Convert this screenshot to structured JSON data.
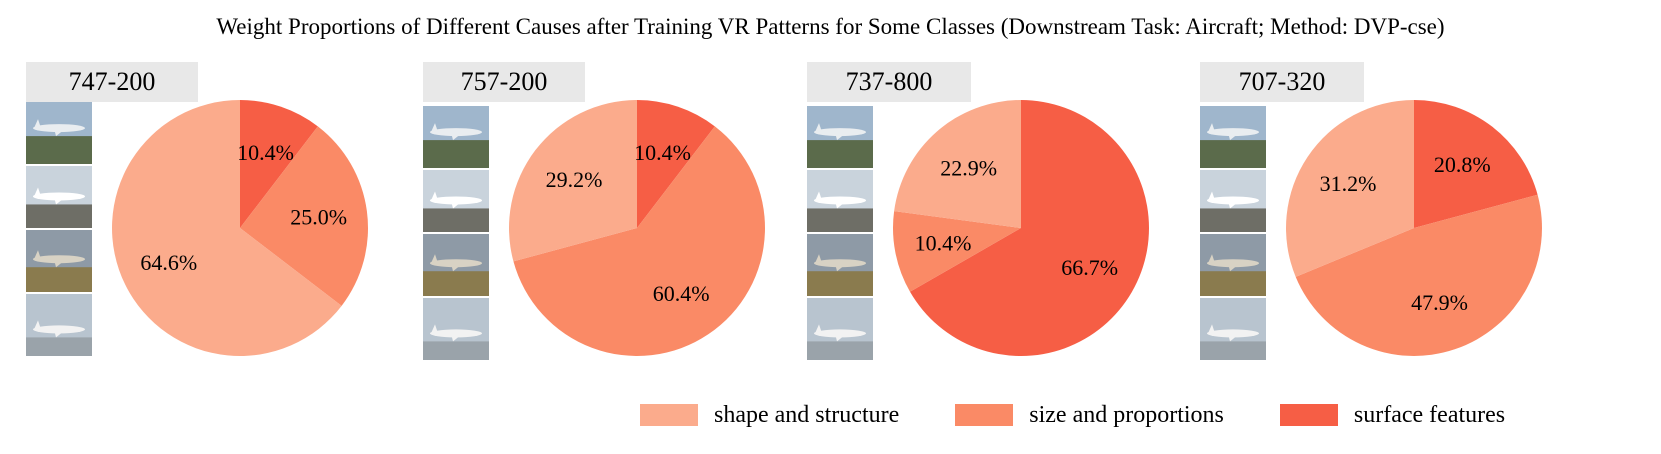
{
  "title": "Weight Proportions of Different Causes after Training VR Patterns for Some Classes (Downstream Task: Aircraft; Method: DVP-cse)",
  "colors": {
    "shape and structure": "#fbab8c",
    "size and proportions": "#fa8a66",
    "surface features": "#f65e45"
  },
  "legend": {
    "shape": "shape and structure",
    "size": "size and proportions",
    "surface": "surface features"
  },
  "panels": [
    {
      "label": "747-200",
      "photos": [
        "aircraft-photo",
        "aircraft-photo",
        "aircraft-photo",
        "aircraft-photo"
      ]
    },
    {
      "label": "757-200",
      "photos": [
        "aircraft-photo",
        "aircraft-photo",
        "aircraft-photo",
        "aircraft-photo"
      ]
    },
    {
      "label": "737-800",
      "photos": [
        "aircraft-photo",
        "aircraft-photo",
        "aircraft-photo",
        "aircraft-photo"
      ]
    },
    {
      "label": "707-320",
      "photos": [
        "aircraft-photo",
        "aircraft-photo",
        "aircraft-photo",
        "aircraft-photo"
      ]
    }
  ],
  "chart_data": [
    {
      "type": "pie",
      "title": "747-200",
      "categories": [
        "surface features",
        "size and proportions",
        "shape and structure"
      ],
      "values": [
        10.4,
        25.0,
        64.6
      ],
      "labels": [
        "10.4%",
        "25.0%",
        "64.6%"
      ],
      "legend_position": "bottom"
    },
    {
      "type": "pie",
      "title": "757-200",
      "categories": [
        "surface features",
        "size and proportions",
        "shape and structure"
      ],
      "values": [
        10.4,
        60.4,
        29.2
      ],
      "labels": [
        "10.4%",
        "60.4%",
        "29.2%"
      ],
      "legend_position": "bottom"
    },
    {
      "type": "pie",
      "title": "737-800",
      "categories": [
        "surface features",
        "size and proportions",
        "shape and structure"
      ],
      "values": [
        66.7,
        10.4,
        22.9
      ],
      "labels": [
        "66.7%",
        "10.4%",
        "22.9%"
      ],
      "legend_position": "bottom"
    },
    {
      "type": "pie",
      "title": "707-320",
      "categories": [
        "surface features",
        "size and proportions",
        "shape and structure"
      ],
      "values": [
        20.8,
        47.9,
        31.2
      ],
      "labels": [
        "20.8%",
        "47.9%",
        "31.2%"
      ],
      "legend_position": "bottom"
    }
  ]
}
